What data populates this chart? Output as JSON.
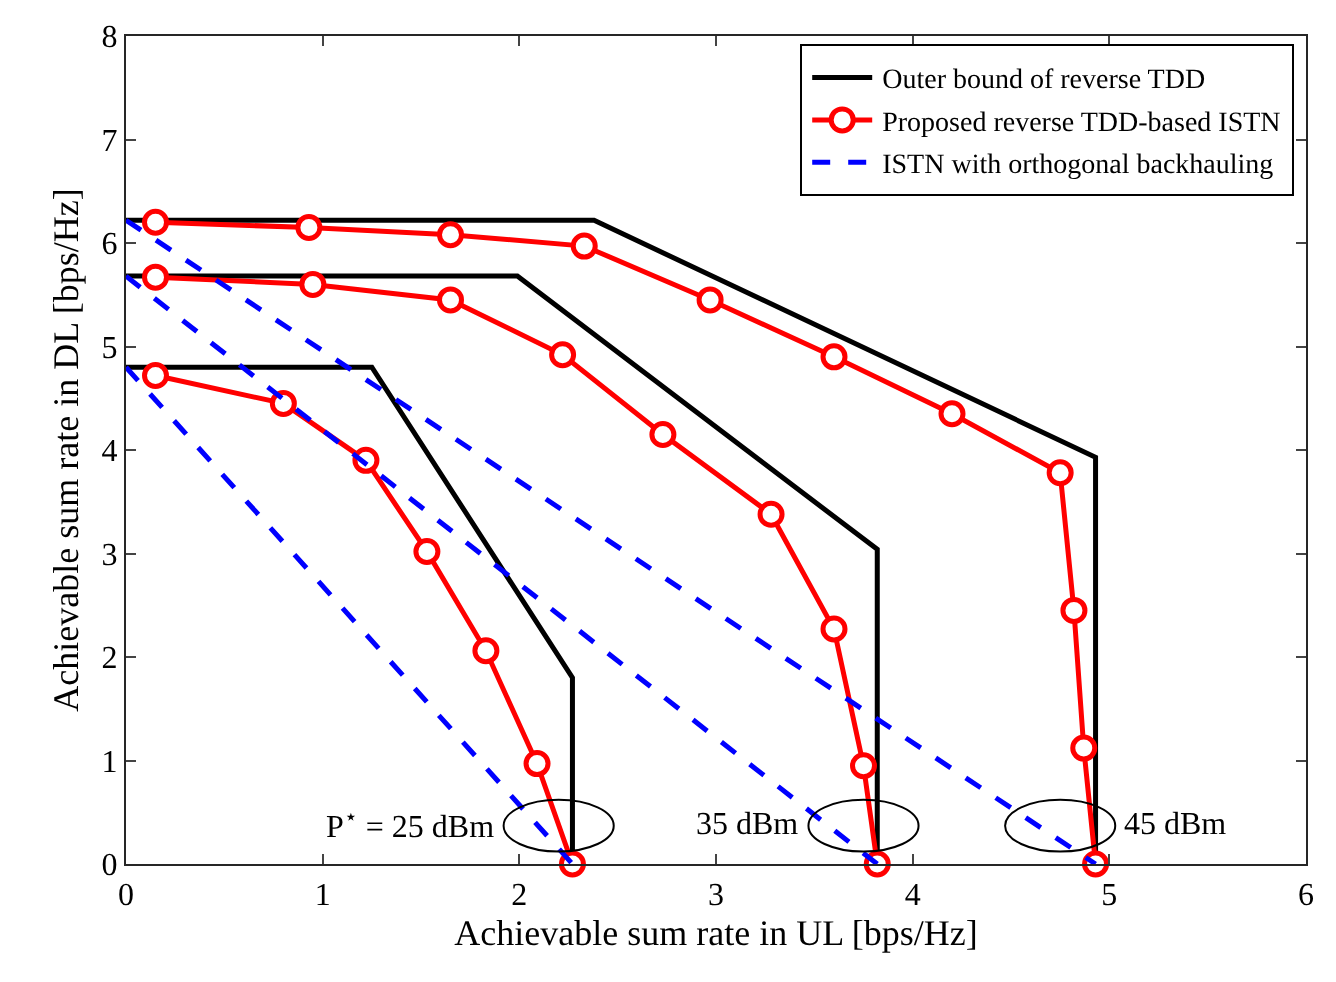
{
  "chart_data": {
    "type": "line",
    "xlabel": "Achievable sum rate in UL [bps/Hz]",
    "ylabel": "Achievable sum rate in DL [bps/Hz]",
    "xlim": [
      0,
      6
    ],
    "ylim": [
      0,
      8
    ],
    "xticks": [
      0,
      1,
      2,
      3,
      4,
      5,
      6
    ],
    "yticks": [
      0,
      1,
      2,
      3,
      4,
      5,
      6,
      7,
      8
    ],
    "legend": "top right",
    "series": [
      {
        "name": "Outer bound of reverse TDD",
        "color": "#000000",
        "marker": "none",
        "line_style": "solid",
        "x": [
          0,
          1.25,
          2.27,
          2.27
        ],
        "values": [
          4.8,
          4.8,
          1.8,
          0
        ]
      },
      {
        "name": "Proposed reverse TDD-based ISTN",
        "color": "#ff0000",
        "marker": "circle",
        "line_style": "solid",
        "x": [
          0.15,
          0.8,
          1.22,
          1.53,
          1.83,
          2.09,
          2.27
        ],
        "values": [
          4.72,
          4.45,
          3.9,
          3.02,
          2.06,
          0.97,
          0
        ]
      },
      {
        "name": "ISTN with orthogonal backhauling",
        "color": "#0000ff",
        "marker": "none",
        "line_style": "dashed",
        "x": [
          0,
          2.27
        ],
        "values": [
          4.8,
          0
        ]
      },
      {
        "color": "#000000",
        "marker": "none",
        "line_style": "solid",
        "x": [
          0,
          1.99,
          3.82,
          3.82
        ],
        "values": [
          5.68,
          5.68,
          3.04,
          0
        ]
      },
      {
        "color": "#ff0000",
        "marker": "circle",
        "line_style": "solid",
        "x": [
          0.15,
          0.95,
          1.65,
          2.22,
          2.73,
          3.28,
          3.6,
          3.75,
          3.82
        ],
        "values": [
          5.67,
          5.6,
          5.45,
          4.92,
          4.15,
          3.38,
          2.27,
          0.95,
          0
        ]
      },
      {
        "color": "#0000ff",
        "marker": "none",
        "line_style": "dashed",
        "x": [
          0,
          3.82
        ],
        "values": [
          5.68,
          0
        ]
      },
      {
        "color": "#000000",
        "marker": "none",
        "line_style": "solid",
        "x": [
          0,
          2.38,
          4.93,
          4.93
        ],
        "values": [
          6.22,
          6.22,
          3.93,
          0
        ]
      },
      {
        "color": "#ff0000",
        "marker": "circle",
        "line_style": "solid",
        "x": [
          0.15,
          0.93,
          1.65,
          2.33,
          2.97,
          3.6,
          4.2,
          4.75,
          4.82,
          4.87,
          4.93
        ],
        "values": [
          6.2,
          6.15,
          6.08,
          5.97,
          5.45,
          4.9,
          4.35,
          3.78,
          2.45,
          1.12,
          0
        ]
      },
      {
        "color": "#0000ff",
        "marker": "none",
        "line_style": "dashed",
        "x": [
          0,
          4.93
        ],
        "values": [
          6.22,
          0
        ]
      }
    ],
    "annotations": [
      {
        "text": "P$^{⋆}$ = 25 dBm",
        "x": 2.2,
        "y": 0.37
      },
      {
        "text": "35 dBm",
        "x": 3.75,
        "y": 0.37
      },
      {
        "text": "45 dBm",
        "x": 4.75,
        "y": 0.37
      }
    ]
  }
}
